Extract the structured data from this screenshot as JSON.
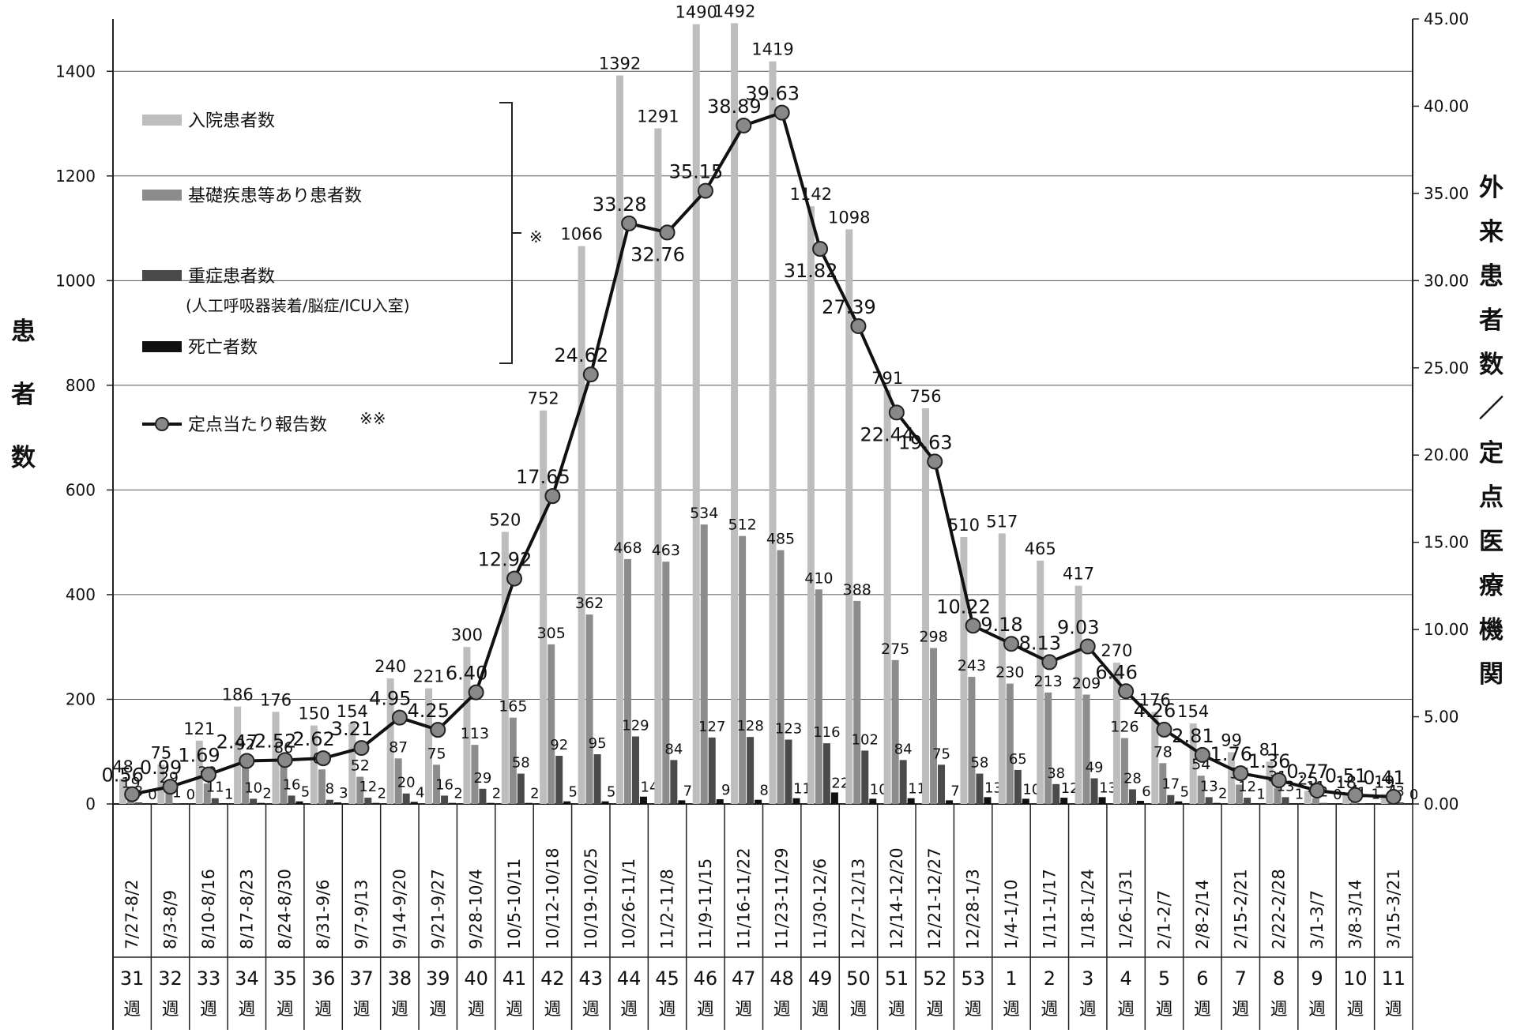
{
  "chart_data": {
    "type": "bar",
    "title": "",
    "ylabel_left": "患者数",
    "ylabel_right": "外来患者数／定点医療機関",
    "ylim_left": [
      0,
      1500
    ],
    "ylim_right": [
      0,
      45
    ],
    "left_ticks": [
      "0",
      "200",
      "400",
      "600",
      "800",
      "1000",
      "1200",
      "1400"
    ],
    "right_ticks": [
      "0.00",
      "5.00",
      "10.00",
      "15.00",
      "20.00",
      "25.00",
      "30.00",
      "35.00",
      "40.00",
      "45.00"
    ],
    "grid": true,
    "legend_position": "top-left",
    "legend": {
      "items": [
        "入院患者数",
        "基礎疾患等あり患者数",
        "重症患者数",
        "(人工呼吸器装着/脳症/ICU入室)",
        "死亡者数",
        "定点当たり報告数"
      ],
      "bracket_note": "※",
      "line_note": "※※"
    },
    "colors": {
      "hospitalized": "#bdbdbd",
      "underlying": "#8c8c8c",
      "severe": "#4a4a4a",
      "deaths": "#111111",
      "line": "#111111",
      "marker": "#888888"
    },
    "categories": [
      "7/27-8/2",
      "8/3-8/9",
      "8/10-8/16",
      "8/17-8/23",
      "8/24-8/30",
      "8/31-9/6",
      "9/7-9/13",
      "9/14-9/20",
      "9/21-9/27",
      "9/28-10/4",
      "10/5-10/11",
      "10/12-10/18",
      "10/19-10/25",
      "10/26-11/1",
      "11/2-11/8",
      "11/9-11/15",
      "11/16-11/22",
      "11/23-11/29",
      "11/30-12/6",
      "12/7-12/13",
      "12/14-12/20",
      "12/21-12/27",
      "12/28-1/3",
      "1/4-1/10",
      "1/11-1/17",
      "1/18-1/24",
      "1/26-1/31",
      "2/1-2/7",
      "2/8-2/14",
      "2/15-2/21",
      "2/22-2/28",
      "3/1-3/7",
      "3/8-3/14",
      "3/15-3/21"
    ],
    "weeks": [
      {
        "num": "31",
        "unit": "週"
      },
      {
        "num": "32",
        "unit": "週"
      },
      {
        "num": "33",
        "unit": "週"
      },
      {
        "num": "34",
        "unit": "週"
      },
      {
        "num": "35",
        "unit": "週"
      },
      {
        "num": "36",
        "unit": "週"
      },
      {
        "num": "37",
        "unit": "週"
      },
      {
        "num": "38",
        "unit": "週"
      },
      {
        "num": "39",
        "unit": "週"
      },
      {
        "num": "40",
        "unit": "週"
      },
      {
        "num": "41",
        "unit": "週"
      },
      {
        "num": "42",
        "unit": "週"
      },
      {
        "num": "43",
        "unit": "週"
      },
      {
        "num": "44",
        "unit": "週"
      },
      {
        "num": "45",
        "unit": "週"
      },
      {
        "num": "46",
        "unit": "週"
      },
      {
        "num": "47",
        "unit": "週"
      },
      {
        "num": "48",
        "unit": "週"
      },
      {
        "num": "49",
        "unit": "週"
      },
      {
        "num": "50",
        "unit": "週"
      },
      {
        "num": "51",
        "unit": "週"
      },
      {
        "num": "52",
        "unit": "週"
      },
      {
        "num": "53",
        "unit": "週"
      },
      {
        "num": "1",
        "unit": "週"
      },
      {
        "num": "2",
        "unit": "週"
      },
      {
        "num": "3",
        "unit": "週"
      },
      {
        "num": "4",
        "unit": "週"
      },
      {
        "num": "5",
        "unit": "週"
      },
      {
        "num": "6",
        "unit": "週"
      },
      {
        "num": "7",
        "unit": "週"
      },
      {
        "num": "8",
        "unit": "週"
      },
      {
        "num": "9",
        "unit": "週"
      },
      {
        "num": "10",
        "unit": "週"
      },
      {
        "num": "11",
        "unit": "週"
      }
    ],
    "series": [
      {
        "name": "入院患者数",
        "axis": "left",
        "values": [
          48,
          75,
          121,
          186,
          176,
          150,
          154,
          240,
          221,
          300,
          520,
          752,
          1066,
          1392,
          1291,
          1490,
          1492,
          1419,
          1142,
          1098,
          791,
          756,
          510,
          517,
          465,
          417,
          270,
          176,
          154,
          99,
          81,
          25,
          18,
          19
        ]
      },
      {
        "name": "基礎疾患等あり患者数",
        "axis": "left",
        "values": [
          19,
          29,
          39,
          92,
          86,
          66,
          52,
          87,
          75,
          113,
          165,
          305,
          362,
          468,
          463,
          534,
          512,
          485,
          410,
          388,
          275,
          298,
          243,
          230,
          213,
          209,
          126,
          78,
          54,
          37,
          31,
          11,
          4,
          4
        ]
      },
      {
        "name": "重症患者数",
        "axis": "left",
        "values": [
          3,
          1,
          11,
          10,
          16,
          8,
          12,
          20,
          16,
          29,
          58,
          92,
          95,
          129,
          84,
          127,
          128,
          123,
          116,
          102,
          84,
          75,
          58,
          65,
          38,
          49,
          28,
          17,
          13,
          12,
          13,
          2,
          1,
          3
        ]
      },
      {
        "name": "死亡者数",
        "axis": "left",
        "values": [
          0,
          0,
          1,
          2,
          5,
          3,
          2,
          4,
          2,
          2,
          2,
          5,
          5,
          14,
          7,
          9,
          8,
          11,
          22,
          10,
          11,
          7,
          13,
          10,
          12,
          13,
          6,
          5,
          2,
          1,
          1,
          0,
          1,
          0
        ]
      },
      {
        "name": "定点当たり報告数",
        "axis": "right",
        "type": "line",
        "values": [
          0.56,
          0.99,
          1.69,
          2.47,
          2.52,
          2.62,
          3.21,
          4.95,
          4.25,
          6.4,
          12.92,
          17.65,
          24.62,
          33.28,
          32.76,
          35.15,
          38.89,
          39.63,
          31.82,
          27.39,
          22.44,
          19.63,
          10.22,
          9.18,
          8.13,
          9.03,
          6.46,
          4.26,
          2.81,
          1.76,
          1.36,
          0.77,
          0.51,
          0.41
        ],
        "labels": [
          "0.56",
          "0.99",
          "1.69",
          "2.47",
          "2.52",
          "2.62",
          "3.21",
          "4.95",
          "4.25",
          "6.40",
          "12.92",
          "17.65",
          "24.62",
          "33.28",
          "32.76",
          "35.15",
          "38.89",
          "39.63",
          "31.82",
          "27.39",
          "22.44",
          "19.63",
          "10.22",
          "9.18",
          "8.13",
          "9.03",
          "6.46",
          "4.26",
          "2.81",
          "1.76",
          "1.36",
          "0.77",
          "0.51",
          "0.41"
        ]
      }
    ]
  }
}
